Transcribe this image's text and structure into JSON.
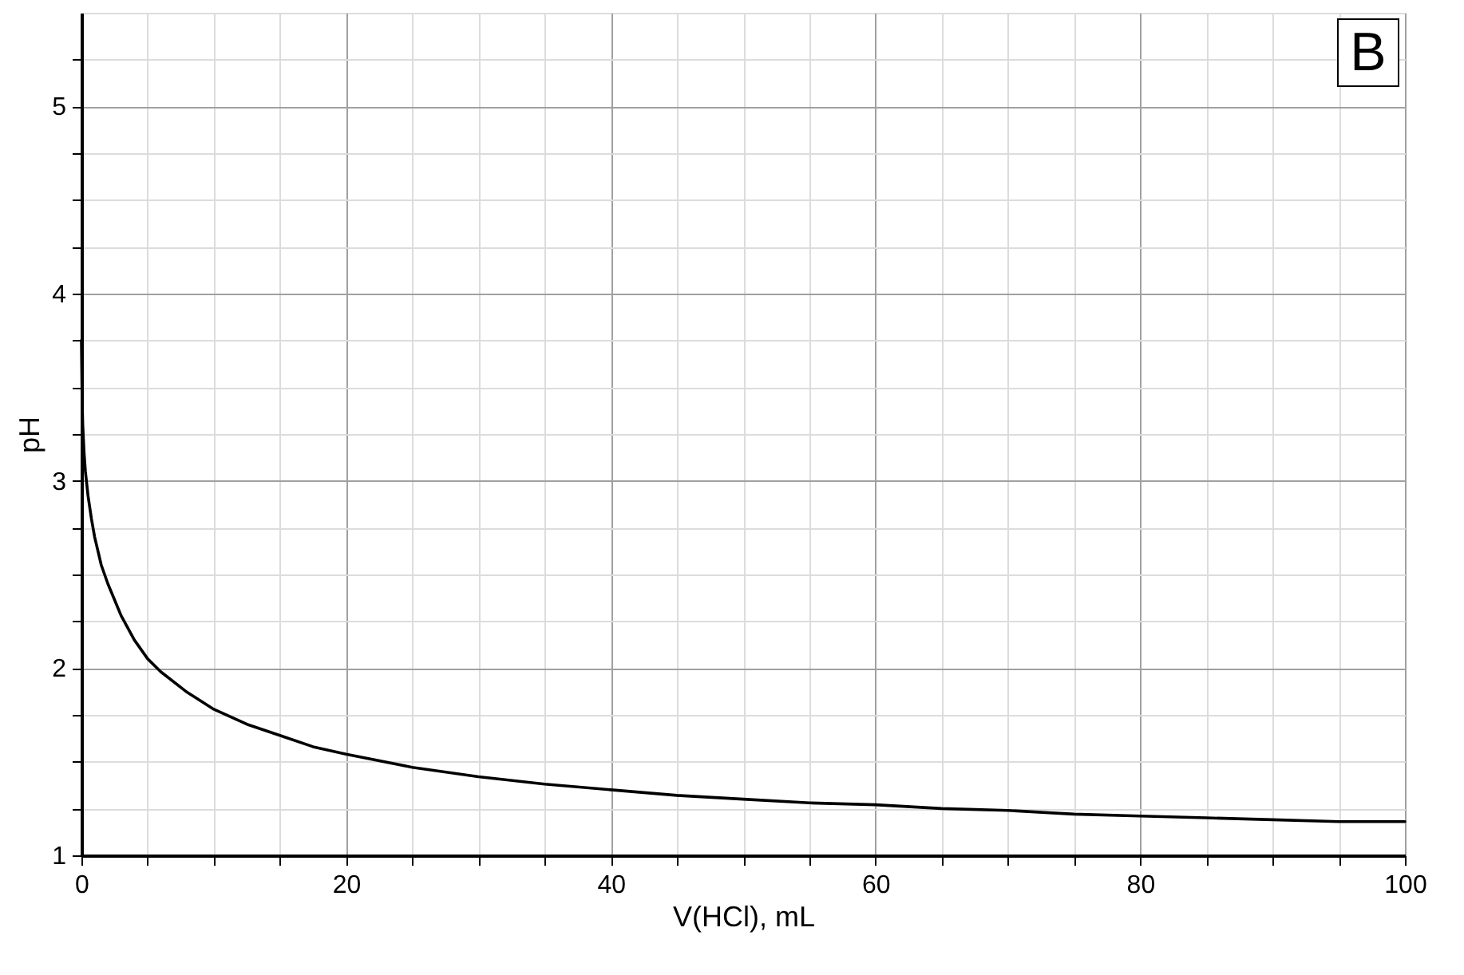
{
  "chart_data": {
    "type": "line",
    "xlabel": "V(HCl), mL",
    "ylabel": "pH",
    "annotations": [
      "B"
    ],
    "x": [
      0,
      0.05,
      0.1,
      0.2,
      0.3,
      0.5,
      0.75,
      1,
      1.5,
      2,
      3,
      4,
      5,
      6,
      8,
      10,
      12.5,
      15,
      17.5,
      20,
      25,
      30,
      35,
      40,
      45,
      50,
      55,
      60,
      65,
      70,
      75,
      80,
      85,
      90,
      95,
      100
    ],
    "series": [
      {
        "color": "#000000",
        "values": [
          3.75,
          3.45,
          3.3,
          3.15,
          3.05,
          2.92,
          2.8,
          2.7,
          2.55,
          2.45,
          2.28,
          2.15,
          2.05,
          1.98,
          1.87,
          1.78,
          1.7,
          1.64,
          1.58,
          1.54,
          1.47,
          1.42,
          1.38,
          1.35,
          1.32,
          1.3,
          1.28,
          1.27,
          1.25,
          1.24,
          1.22,
          1.21,
          1.2,
          1.19,
          1.18,
          1.18
        ]
      }
    ],
    "xlim": [
      0,
      100
    ],
    "xticks": [
      0,
      {
        "value": 5,
        "label": null
      },
      {
        "value": 10,
        "label": null
      },
      {
        "value": 15,
        "label": null
      },
      20,
      {
        "value": 25,
        "label": null
      },
      {
        "value": 30,
        "label": null
      },
      {
        "value": 35,
        "label": null
      },
      40,
      {
        "value": 45,
        "label": null
      },
      {
        "value": 50,
        "label": null
      },
      {
        "value": 55,
        "label": null
      },
      60,
      {
        "value": 65,
        "label": null
      },
      {
        "value": 70,
        "label": null
      },
      {
        "value": 75,
        "label": null
      },
      80,
      {
        "value": 85,
        "label": null
      },
      {
        "value": 90,
        "label": null
      },
      {
        "value": 95,
        "label": null
      },
      100
    ],
    "ylim": [
      1,
      5.5
    ],
    "yticks": [
      1,
      {
        "value": 1.25,
        "label": null
      },
      {
        "value": 1.5,
        "label": null
      },
      {
        "value": 1.75,
        "label": null
      },
      2,
      {
        "value": 2.25,
        "label": null
      },
      {
        "value": 2.5,
        "label": null
      },
      {
        "value": 2.75,
        "label": null
      },
      3,
      {
        "value": 3.25,
        "label": null
      },
      {
        "value": 3.5,
        "label": null
      },
      {
        "value": 3.75,
        "label": null
      },
      4,
      {
        "value": 4.25,
        "label": null
      },
      {
        "value": 4.5,
        "label": null
      },
      {
        "value": 4.75,
        "label": null
      },
      5,
      {
        "value": 5.25,
        "label": null
      }
    ],
    "grid": true,
    "marker": "none",
    "line_style": "solid"
  }
}
